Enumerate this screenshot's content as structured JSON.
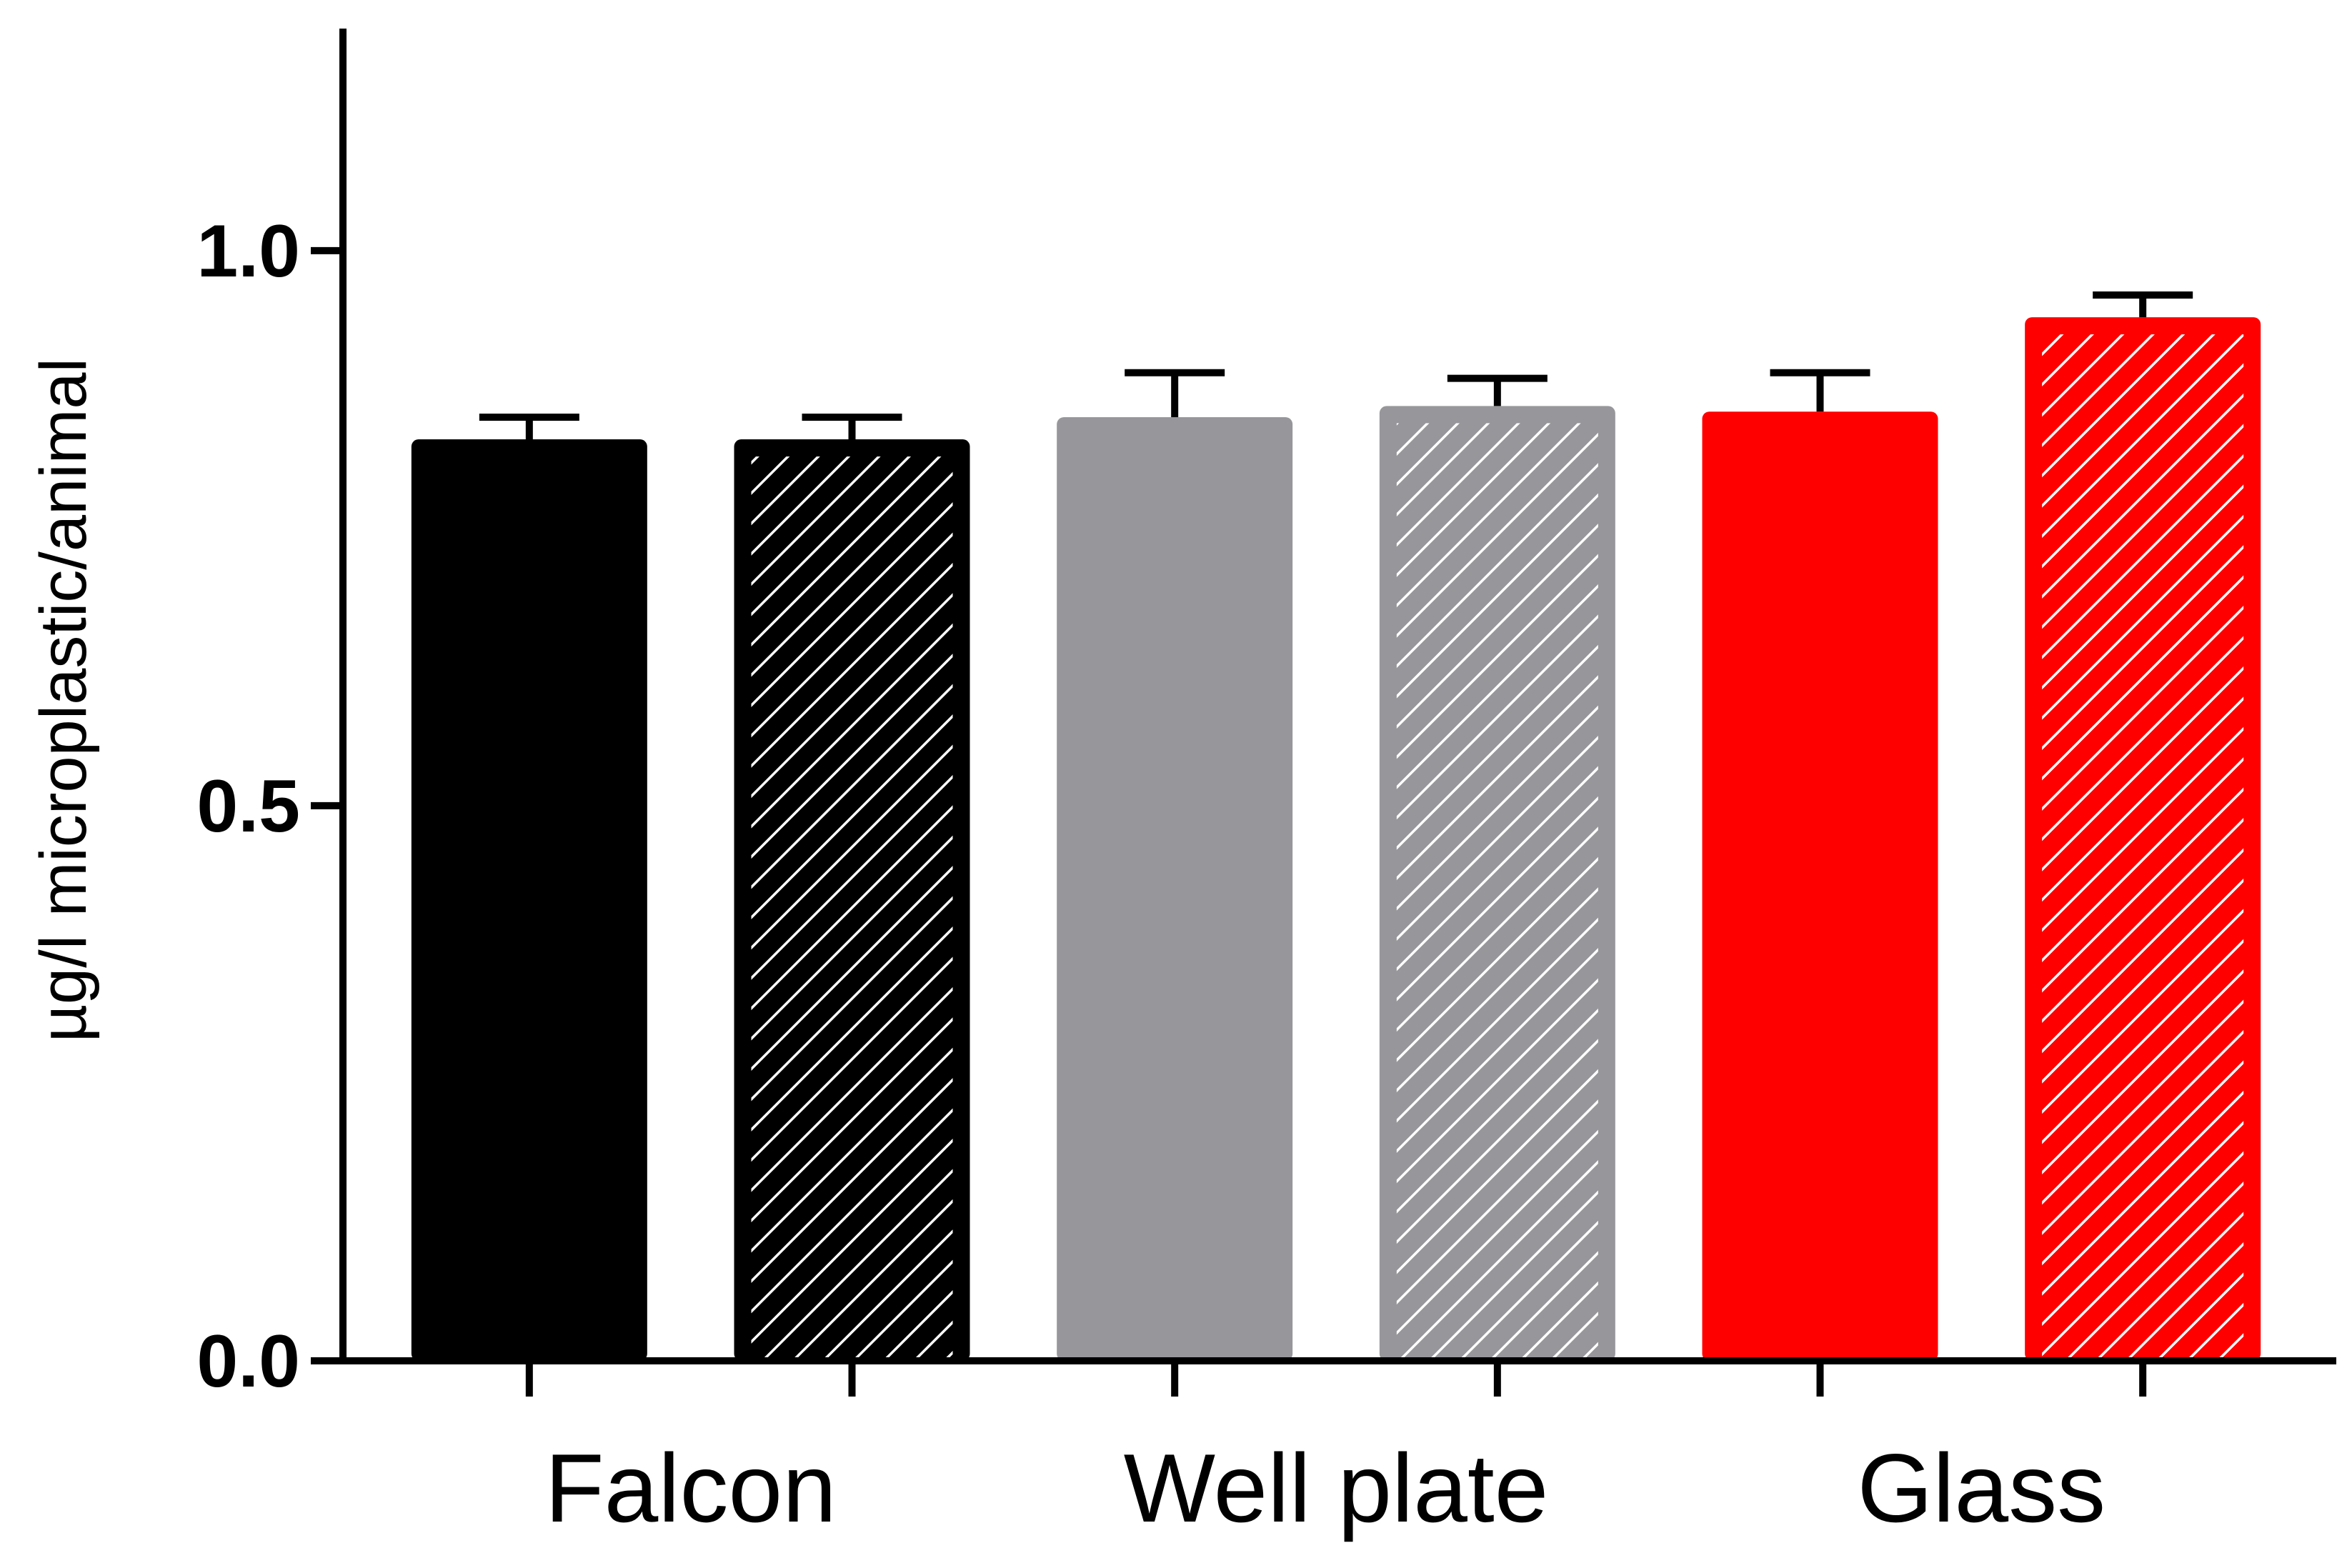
{
  "chart_data": {
    "type": "bar",
    "title": "",
    "xlabel": "",
    "ylabel": "µg/l microplastic/animal",
    "ylim": [
      0,
      1.2
    ],
    "yticks": [
      0.0,
      0.5,
      1.0
    ],
    "ytick_labels": [
      "0.0",
      "0.5",
      "1.0"
    ],
    "group_labels": [
      "Falcon",
      "Well plate",
      "Glass"
    ],
    "grid": false,
    "legend": "none",
    "bars": [
      {
        "group": "Falcon",
        "value": 0.83,
        "error": 0.02,
        "color": "#000000",
        "hatched": false
      },
      {
        "group": "Falcon",
        "value": 0.83,
        "error": 0.02,
        "color": "#000000",
        "hatched": true
      },
      {
        "group": "Well plate",
        "value": 0.85,
        "error": 0.04,
        "color": "#97969a",
        "hatched": false
      },
      {
        "group": "Well plate",
        "value": 0.86,
        "error": 0.025,
        "color": "#97969a",
        "hatched": true
      },
      {
        "group": "Glass",
        "value": 0.855,
        "error": 0.035,
        "color": "#ff0000",
        "hatched": false
      },
      {
        "group": "Glass",
        "value": 0.94,
        "error": 0.02,
        "color": "#ff0000",
        "hatched": true
      }
    ]
  }
}
